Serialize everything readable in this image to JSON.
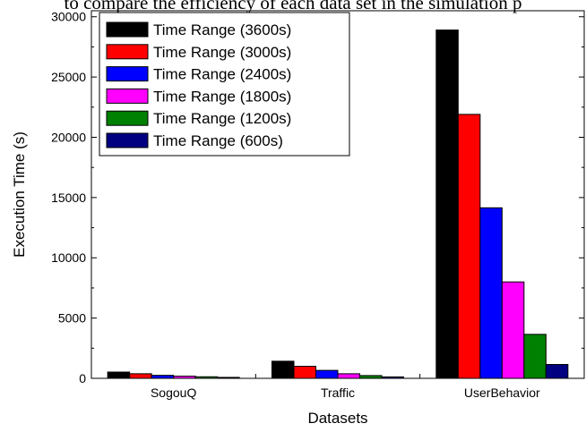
{
  "caption_fragment": "to compare the efficiency of each data set in the simulation p",
  "chart_data": {
    "type": "bar",
    "categories": [
      "SogouQ",
      "Traffic",
      "UserBehavior"
    ],
    "series": [
      {
        "name": "Time Range (3600s)",
        "color": "#000000",
        "values": [
          520,
          1420,
          28900
        ]
      },
      {
        "name": "Time Range (3000s)",
        "color": "#ff0000",
        "values": [
          380,
          1000,
          21900
        ]
      },
      {
        "name": "Time Range (2400s)",
        "color": "#0000ff",
        "values": [
          250,
          660,
          14150
        ]
      },
      {
        "name": "Time Range (1800s)",
        "color": "#ff00ff",
        "values": [
          180,
          380,
          8000
        ]
      },
      {
        "name": "Time Range (1200s)",
        "color": "#008000",
        "values": [
          130,
          230,
          3650
        ]
      },
      {
        "name": "Time Range (600s)",
        "color": "#000080",
        "values": [
          80,
          120,
          1150
        ]
      }
    ],
    "xlabel": "Datasets",
    "ylabel": "Execution Time (s)",
    "ylim": [
      0,
      30500
    ],
    "yticks": [
      0,
      5000,
      10000,
      15000,
      20000,
      25000,
      30000
    ],
    "ytick_labels": [
      "0",
      "5000",
      "10000",
      "15000",
      "20000",
      "25000",
      "30000"
    ],
    "legend_position": "top-left",
    "grid": false
  }
}
